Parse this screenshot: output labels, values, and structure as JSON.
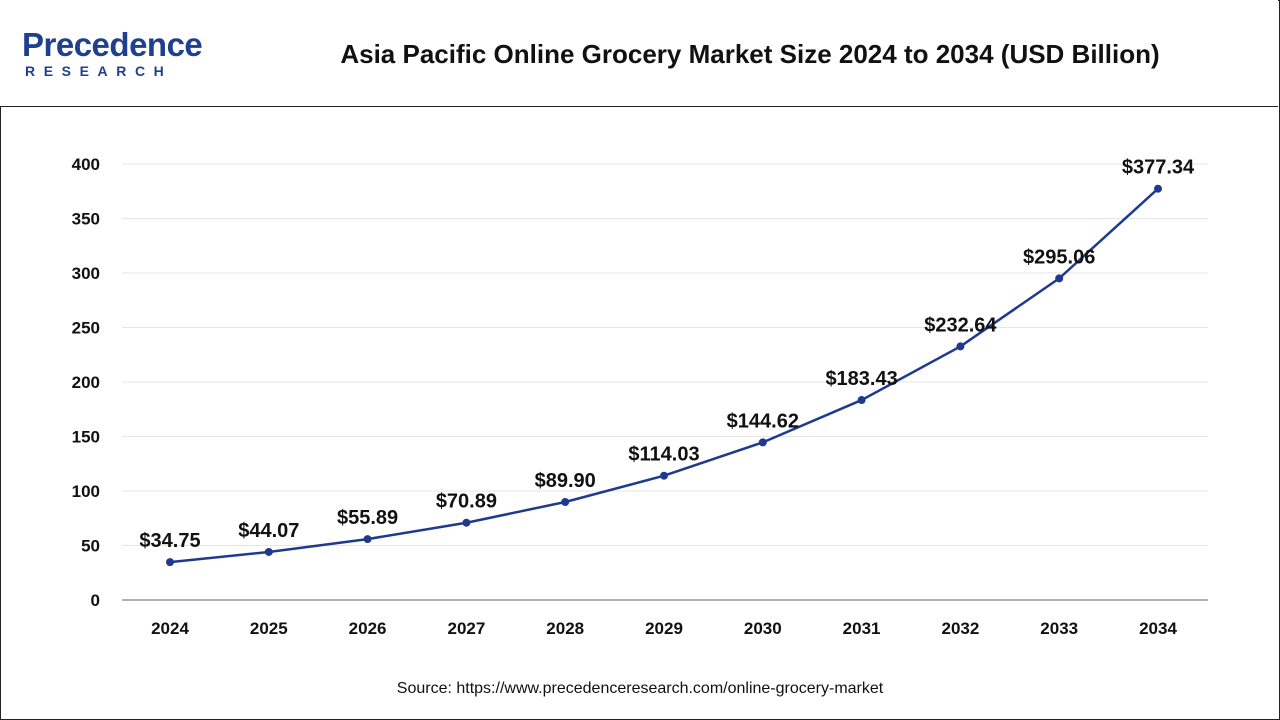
{
  "header": {
    "logo_main": "Precedence",
    "logo_sub": "RESEARCH",
    "title": "Asia Pacific Online Grocery Market Size 2024 to 2034 (USD Billion)"
  },
  "footer": {
    "source": "Source: https://www.precedenceresearch.com/online-grocery-market"
  },
  "colors": {
    "line": "#1e3a8f",
    "grid": "#e6e6e6",
    "axis": "#999999",
    "logo": "#1f3f8f"
  },
  "chart_data": {
    "type": "line",
    "title": "Asia Pacific Online Grocery Market Size 2024 to 2034 (USD Billion)",
    "xlabel": "",
    "ylabel": "",
    "categories": [
      "2024",
      "2025",
      "2026",
      "2027",
      "2028",
      "2029",
      "2030",
      "2031",
      "2032",
      "2033",
      "2034"
    ],
    "series": [
      {
        "values": [
          34.75,
          44.07,
          55.89,
          70.89,
          89.9,
          114.03,
          144.62,
          183.43,
          232.64,
          295.06,
          377.34
        ],
        "labels": [
          "$34.75",
          "$44.07",
          "$55.89",
          "$70.89",
          "$89.90",
          "$114.03",
          "$144.62",
          "$183.43",
          "$232.64",
          "$295.06",
          "$377.34"
        ]
      }
    ],
    "ylim": [
      0,
      400
    ],
    "yticks": [
      0,
      50,
      100,
      150,
      200,
      250,
      300,
      350,
      400
    ],
    "grid": true,
    "legend": "none"
  }
}
